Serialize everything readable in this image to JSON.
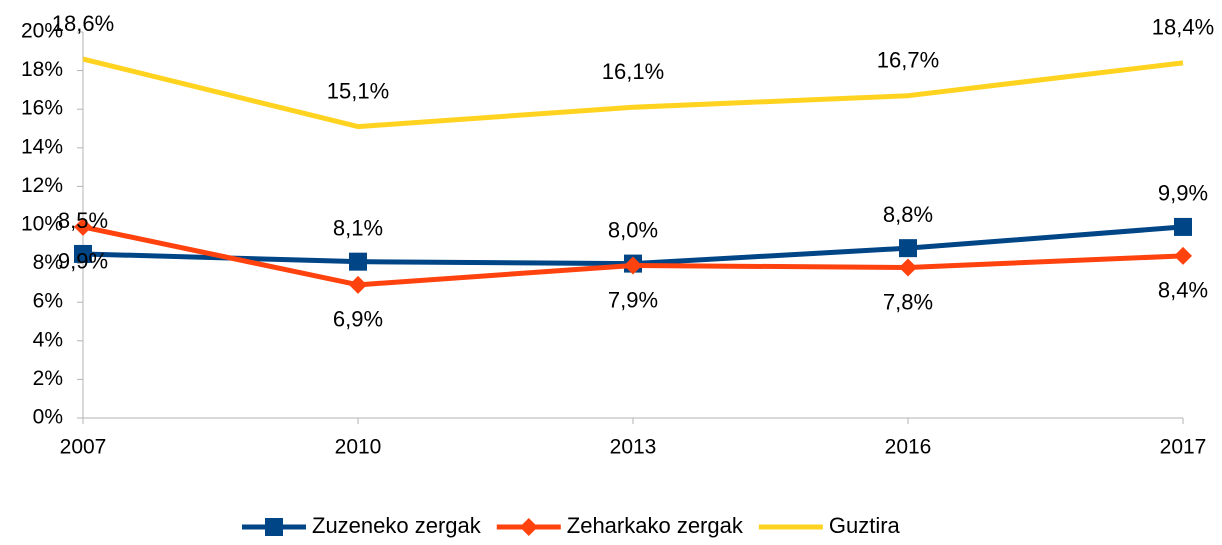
{
  "chart_data": {
    "type": "line",
    "categories": [
      "2007",
      "2010",
      "2013",
      "2016",
      "2017"
    ],
    "series": [
      {
        "name": "Zuzeneko zergak",
        "color": "#004586",
        "marker": "square",
        "values": [
          8.5,
          8.1,
          8.0,
          8.8,
          9.9
        ],
        "value_labels": [
          "8,5%",
          "8,1%",
          "8,0%",
          "8,8%",
          "9,9%"
        ]
      },
      {
        "name": "Zeharkako zergak",
        "color": "#ff420e",
        "marker": "diamond",
        "values": [
          9.9,
          6.9,
          7.9,
          7.8,
          8.4
        ],
        "value_labels": [
          "9,9%",
          "6,9%",
          "7,9%",
          "7,8%",
          "8,4%"
        ]
      },
      {
        "name": "Guztira",
        "color": "#ffd320",
        "marker": "none",
        "values": [
          18.6,
          15.1,
          16.1,
          16.7,
          18.4
        ],
        "value_labels": [
          "18,6%",
          "15,1%",
          "16,1%",
          "16,7%",
          "18,4%"
        ]
      }
    ],
    "ylim": [
      0,
      20
    ],
    "yticks": [
      {
        "value": 0,
        "label": "0%"
      },
      {
        "value": 2,
        "label": "2%"
      },
      {
        "value": 4,
        "label": "4%"
      },
      {
        "value": 6,
        "label": "6%"
      },
      {
        "value": 8,
        "label": "8%"
      },
      {
        "value": 10,
        "label": "10%"
      },
      {
        "value": 12,
        "label": "12%"
      },
      {
        "value": 14,
        "label": "14%"
      },
      {
        "value": 16,
        "label": "16%"
      },
      {
        "value": 18,
        "label": "18%"
      },
      {
        "value": 20,
        "label": "20%"
      }
    ],
    "grid": false,
    "legend": "bottom"
  }
}
